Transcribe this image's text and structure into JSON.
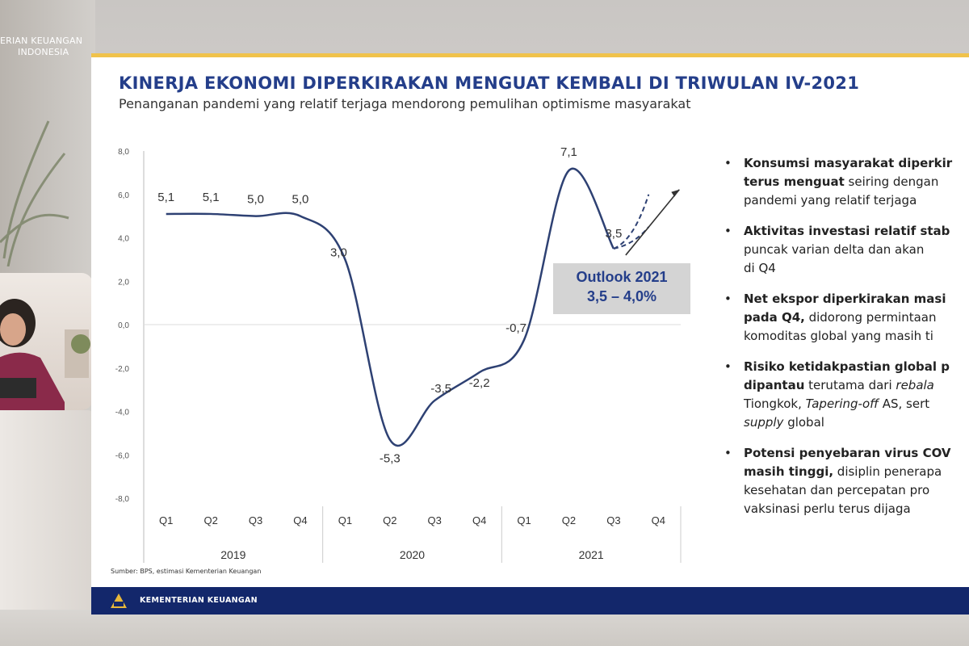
{
  "overlay": {
    "org_line1": "ERIAN KEUANGAN",
    "org_line2": "INDONESIA"
  },
  "slide": {
    "title": "KINERJA EKONOMI DIPERKIRAKAN MENGUAT KEMBALI DI TRIWULAN IV-2021",
    "subtitle": "Penanganan pandemi yang relatif terjaga mendorong pemulihan optimisme masyarakat",
    "outlook_title": "Outlook 2021",
    "outlook_range": "3,5 – 4,0%",
    "source": "Sumber: BPS, estimasi Kementerian Keuangan",
    "footer_label": "KEMENTERIAN KEUANGAN",
    "bullets": [
      {
        "lines": [
          [
            {
              "t": "Konsumsi masyarakat diperkir",
              "s": "b"
            }
          ],
          [
            {
              "t": "terus menguat",
              "s": "b"
            },
            {
              "t": " seiring dengan",
              "s": ""
            }
          ],
          [
            {
              "t": "pandemi yang relatif terjaga",
              "s": ""
            }
          ]
        ]
      },
      {
        "lines": [
          [
            {
              "t": "Aktivitas investasi relatif stab",
              "s": "b"
            }
          ],
          [
            {
              "t": "puncak varian delta",
              "s": ""
            },
            {
              "t": " dan akan",
              "s": ""
            }
          ],
          [
            {
              "t": "di Q4",
              "s": ""
            }
          ]
        ]
      },
      {
        "lines": [
          [
            {
              "t": "Net ekspor diperkirakan masi",
              "s": "b"
            }
          ],
          [
            {
              "t": "pada Q4,",
              "s": "b"
            },
            {
              "t": " didorong permintaan",
              "s": ""
            }
          ],
          [
            {
              "t": "komoditas global yang masih ti",
              "s": ""
            }
          ]
        ]
      },
      {
        "lines": [
          [
            {
              "t": "Risiko ketidakpastian global p",
              "s": "b"
            }
          ],
          [
            {
              "t": "dipantau",
              "s": "b"
            },
            {
              "t": " terutama dari ",
              "s": ""
            },
            {
              "t": "rebala",
              "s": "i"
            }
          ],
          [
            {
              "t": "Tiongkok, ",
              "s": ""
            },
            {
              "t": "Tapering-off",
              "s": "i"
            },
            {
              "t": " AS, sert",
              "s": ""
            }
          ],
          [
            {
              "t": "supply",
              "s": "i"
            },
            {
              "t": " global",
              "s": ""
            }
          ]
        ]
      },
      {
        "lines": [
          [
            {
              "t": "Potensi penyebaran virus COV",
              "s": "b"
            }
          ],
          [
            {
              "t": "masih tinggi,",
              "s": "b"
            },
            {
              "t": " disiplin penerapa",
              "s": ""
            }
          ],
          [
            {
              "t": "kesehatan dan percepatan pro",
              "s": ""
            }
          ],
          [
            {
              "t": "vaksinasi perlu terus dijaga",
              "s": ""
            }
          ]
        ]
      }
    ]
  },
  "chart_data": {
    "type": "line",
    "categories": [
      "Q1",
      "Q2",
      "Q3",
      "Q4",
      "Q1",
      "Q2",
      "Q3",
      "Q4",
      "Q1",
      "Q2",
      "Q3",
      "Q4"
    ],
    "years": [
      "2019",
      "2020",
      "2021"
    ],
    "values": [
      5.1,
      5.1,
      5.0,
      5.0,
      3.0,
      -5.3,
      -3.5,
      -2.2,
      -0.7,
      7.1,
      3.5,
      null
    ],
    "value_labels": [
      "5,1",
      "5,1",
      "5,0",
      "5,0",
      "3,0",
      "-5,3",
      "-3,5",
      "-2,2",
      "-0,7",
      "7,1",
      "3,5",
      ""
    ],
    "y_ticks": [
      "8,0",
      "6,0",
      "4,0",
      "2,0",
      "0,0",
      "-2,0",
      "-4,0",
      "-6,0",
      "-8,0"
    ],
    "ylim": [
      -8,
      8
    ],
    "projection": {
      "from": 3.5,
      "upper": 6.0,
      "lower": 4.5
    },
    "line_color": "#2e4173"
  }
}
